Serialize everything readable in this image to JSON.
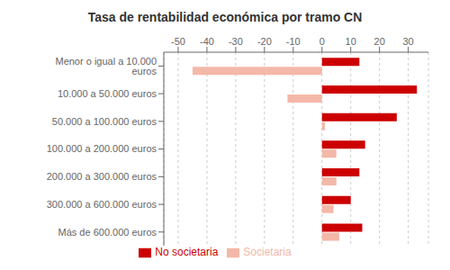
{
  "chart_data": {
    "type": "bar",
    "title": "Tasa de rentabilidad económica por tramo CN",
    "orientation": "horizontal",
    "categories": [
      "Menor o igual a 10.000 euros",
      "10.000 a 50.000 euros",
      "50.000 a 100.000 euros",
      "100.000 a 200.000 euros",
      "200.000 a 300.000 euros",
      "300.000 a 600.000 euros",
      "Más de 600.000 euros"
    ],
    "series": [
      {
        "name": "No societaria",
        "color": "#cc0000",
        "values": [
          13,
          33,
          26,
          15,
          13,
          10,
          14
        ]
      },
      {
        "name": "Societaria",
        "color": "#f4b8a8",
        "values": [
          -45,
          -12,
          1,
          5,
          5,
          4,
          6
        ]
      }
    ],
    "xlim": [
      -55,
      37
    ],
    "xticks": [
      -50,
      -40,
      -30,
      -20,
      -10,
      0,
      10,
      20,
      30
    ],
    "grid": true,
    "legend": "bottom"
  }
}
